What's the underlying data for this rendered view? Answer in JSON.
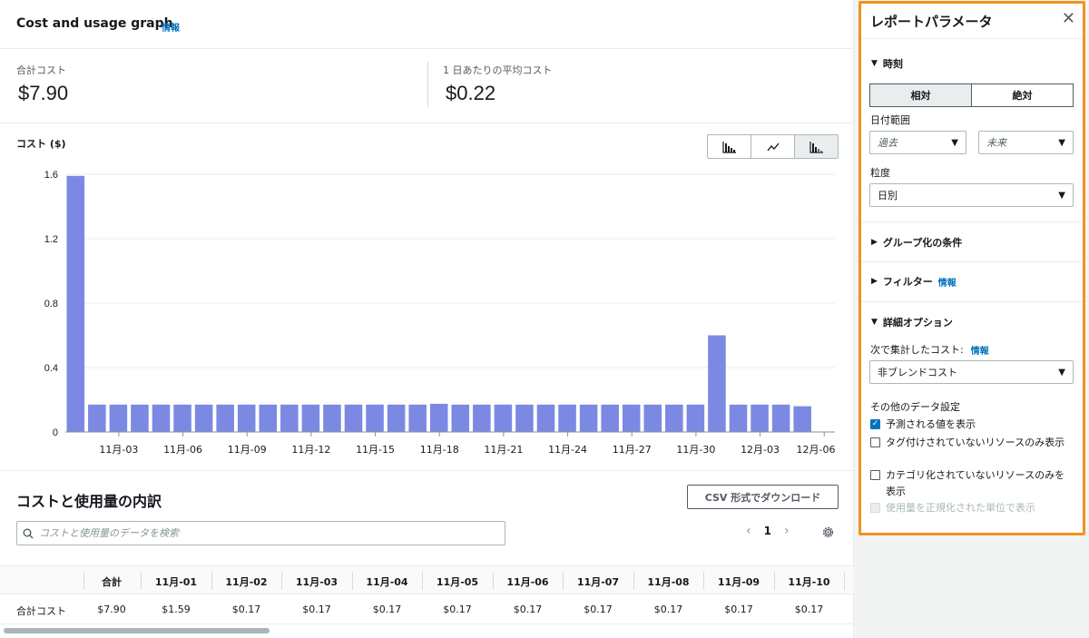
{
  "main": {
    "title": "Cost and usage graph",
    "title_info": "情報",
    "kpis": [
      {
        "label": "合計コスト",
        "value": "$7.90"
      },
      {
        "label": "1 日あたりの平均コスト",
        "value": "$0.22"
      }
    ],
    "chart_toggle": {
      "icons": [
        "grouped-bar-chart-icon",
        "line-chart-icon",
        "stacked-bar-chart-icon"
      ],
      "active_index": 2
    }
  },
  "chart_data": {
    "type": "bar",
    "ylabel": "コスト ($)",
    "ylim": [
      0,
      1.6
    ],
    "yticks": [
      "0",
      "0.4",
      "0.8",
      "1.2",
      "1.6"
    ],
    "grid": true,
    "color": "#7b89e3",
    "categories": [
      "11月-01",
      "11月-02",
      "11月-03",
      "11月-04",
      "11月-05",
      "11月-06",
      "11月-07",
      "11月-08",
      "11月-09",
      "11月-10",
      "11月-11",
      "11月-12",
      "11月-13",
      "11月-14",
      "11月-15",
      "11月-16",
      "11月-17",
      "11月-18",
      "11月-19",
      "11月-20",
      "11月-21",
      "11月-22",
      "11月-23",
      "11月-24",
      "11月-25",
      "11月-26",
      "11月-27",
      "11月-28",
      "11月-29",
      "11月-30",
      "12月-01",
      "12月-02",
      "12月-03",
      "12月-04",
      "12月-05",
      "12月-06"
    ],
    "values": [
      1.59,
      0.17,
      0.17,
      0.17,
      0.17,
      0.17,
      0.17,
      0.17,
      0.17,
      0.17,
      0.17,
      0.17,
      0.17,
      0.17,
      0.17,
      0.17,
      0.17,
      0.175,
      0.17,
      0.17,
      0.17,
      0.17,
      0.17,
      0.17,
      0.17,
      0.17,
      0.17,
      0.17,
      0.17,
      0.17,
      0.6,
      0.17,
      0.17,
      0.17,
      0.16,
      0
    ],
    "xtick_labels": [
      "11月-03",
      "11月-06",
      "11月-09",
      "11月-12",
      "11月-15",
      "11月-18",
      "11月-21",
      "11月-24",
      "11月-27",
      "11月-30",
      "12月-03",
      "12月-06"
    ],
    "xtick_indices": [
      2,
      5,
      8,
      11,
      14,
      17,
      20,
      23,
      26,
      29,
      32,
      35
    ]
  },
  "breakdown": {
    "title": "コストと使用量の内訳",
    "csv_button": "CSV 形式でダウンロード",
    "search_placeholder": "コストと使用量のデータを検索",
    "page": "1",
    "prev": "‹",
    "next": "›",
    "columns": [
      "合計",
      "11月-01",
      "11月-02",
      "11月-03",
      "11月-04",
      "11月-05",
      "11月-06",
      "11月-07",
      "11月-08",
      "11月-09",
      "11月-10"
    ],
    "row_label": "合計コスト",
    "row_values": [
      "$7.90",
      "$1.59",
      "$0.17",
      "$0.17",
      "$0.17",
      "$0.17",
      "$0.17",
      "$0.17",
      "$0.17",
      "$0.17",
      "$0.17"
    ]
  },
  "panel": {
    "title": "レポートパラメータ",
    "close": "✕",
    "time_section": "時刻",
    "seg_relative": "相対",
    "seg_absolute": "絶対",
    "date_range_label": "日付範囲",
    "date_past": "過去",
    "date_future": "未来",
    "granularity_label": "粒度",
    "granularity_value": "日別",
    "group_by": "グループ化の条件",
    "filters": "フィルター",
    "filters_info": "情報",
    "advanced": "詳細オプション",
    "aggregate_label": "次で集計したコスト:",
    "aggregate_info": "情報",
    "aggregate_value": "非ブレンドコスト",
    "other_label": "その他のデータ設定",
    "checks": [
      {
        "label": "予測される値を表示",
        "checked": true,
        "disabled": false
      },
      {
        "label": "タグ付けされていないリソースのみ表示",
        "checked": false,
        "disabled": false
      },
      {
        "label": "カテゴリ化されていないリソースのみを表示",
        "checked": false,
        "disabled": false
      },
      {
        "label": "使用量を正規化された単位で表示",
        "checked": false,
        "disabled": true
      }
    ]
  }
}
